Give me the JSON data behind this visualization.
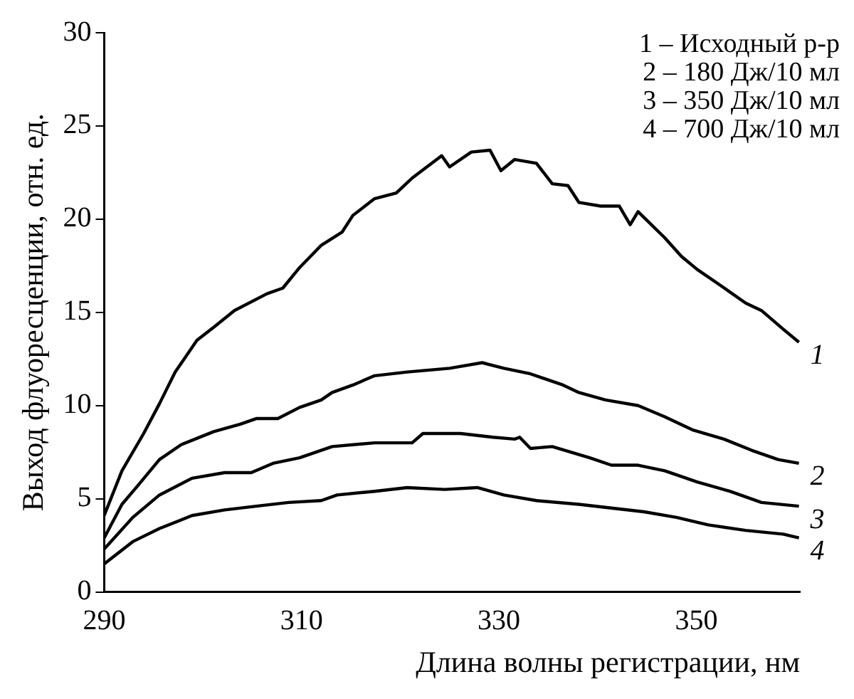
{
  "chart_data": {
    "type": "line",
    "xlabel": "Длина волны регистрации, нм",
    "ylabel": "Выход флуоресценции, отн. ед.",
    "annotations": [
      "1 – Исходный р-р",
      "2 – 180 Дж/10 мл",
      "3 – 350 Дж/10 мл",
      "4 – 700 Дж/10 мл"
    ],
    "xlim": [
      290,
      360.5
    ],
    "xticks": [
      290,
      310,
      330,
      350
    ],
    "ylim": [
      0,
      30
    ],
    "yticks": [
      0,
      5,
      10,
      15,
      20,
      25,
      30
    ],
    "grid": false,
    "legend": false,
    "series": [
      {
        "name": "1",
        "color": "#000000",
        "x": [
          290,
          291.8,
          294,
          295.6,
          297.2,
          299.4,
          301.1,
          303.2,
          306.5,
          308.1,
          309.8,
          312,
          314.1,
          315.2,
          317.4,
          319.6,
          321.2,
          324.2,
          325,
          327.2,
          329.1,
          330.2,
          331.6,
          333.8,
          335.4,
          337,
          338.1,
          340.3,
          342.2,
          343.3,
          344.1,
          346.8,
          348.5,
          350.1,
          352.3,
          355,
          356.6,
          358.8,
          360.4
        ],
        "values": [
          4.1,
          6.5,
          8.5,
          10.1,
          11.8,
          13.5,
          14.2,
          15.1,
          16,
          16.3,
          17.4,
          18.6,
          19.3,
          20.2,
          21.1,
          21.4,
          22.2,
          23.4,
          22.8,
          23.6,
          23.7,
          22.6,
          23.2,
          23,
          21.9,
          21.8,
          20.9,
          20.7,
          20.7,
          19.7,
          20.4,
          19,
          18,
          17.3,
          16.5,
          15.5,
          15.1,
          14.1,
          13.4
        ]
      },
      {
        "name": "2",
        "color": "#000000",
        "x": [
          290,
          291.8,
          293.4,
          295.6,
          297.8,
          301.1,
          303.8,
          305.4,
          307.6,
          309.8,
          312,
          313.1,
          315.2,
          317.4,
          320.7,
          325,
          328.3,
          330.5,
          333.2,
          336.5,
          338.1,
          340.8,
          344.1,
          346.8,
          349.6,
          352.8,
          355.6,
          358.3,
          360.4
        ],
        "values": [
          2.9,
          4.7,
          5.7,
          7.1,
          7.9,
          8.6,
          9,
          9.3,
          9.3,
          9.9,
          10.3,
          10.7,
          11.1,
          11.6,
          11.8,
          12,
          12.3,
          12,
          11.7,
          11.1,
          10.7,
          10.3,
          10,
          9.4,
          8.7,
          8.2,
          7.6,
          7.1,
          6.9
        ]
      },
      {
        "name": "3",
        "color": "#000000",
        "x": [
          290,
          292.9,
          295.6,
          298.9,
          302.2,
          304.9,
          307.1,
          309.8,
          313.1,
          317.4,
          321.2,
          322.3,
          326.1,
          329.4,
          331.6,
          332.1,
          333.2,
          335.4,
          339.2,
          341.4,
          344.1,
          346.8,
          350.1,
          353.4,
          356.6,
          360.4
        ],
        "values": [
          2.3,
          4,
          5.2,
          6.1,
          6.4,
          6.4,
          6.9,
          7.2,
          7.8,
          8,
          8,
          8.5,
          8.5,
          8.3,
          8.2,
          8.3,
          7.7,
          7.8,
          7.2,
          6.8,
          6.8,
          6.5,
          5.9,
          5.4,
          4.8,
          4.6
        ]
      },
      {
        "name": "4",
        "color": "#000000",
        "x": [
          290,
          292.9,
          295.6,
          298.9,
          302.2,
          305.4,
          308.7,
          312,
          313.6,
          317.4,
          320.7,
          324.5,
          327.8,
          330.5,
          333.8,
          338.1,
          341.4,
          344.7,
          348,
          351.2,
          355,
          358.8,
          360.4
        ],
        "values": [
          1.5,
          2.7,
          3.4,
          4.1,
          4.4,
          4.6,
          4.8,
          4.9,
          5.2,
          5.4,
          5.6,
          5.5,
          5.6,
          5.2,
          4.9,
          4.7,
          4.5,
          4.3,
          4,
          3.6,
          3.3,
          3.1,
          2.9
        ]
      }
    ]
  }
}
